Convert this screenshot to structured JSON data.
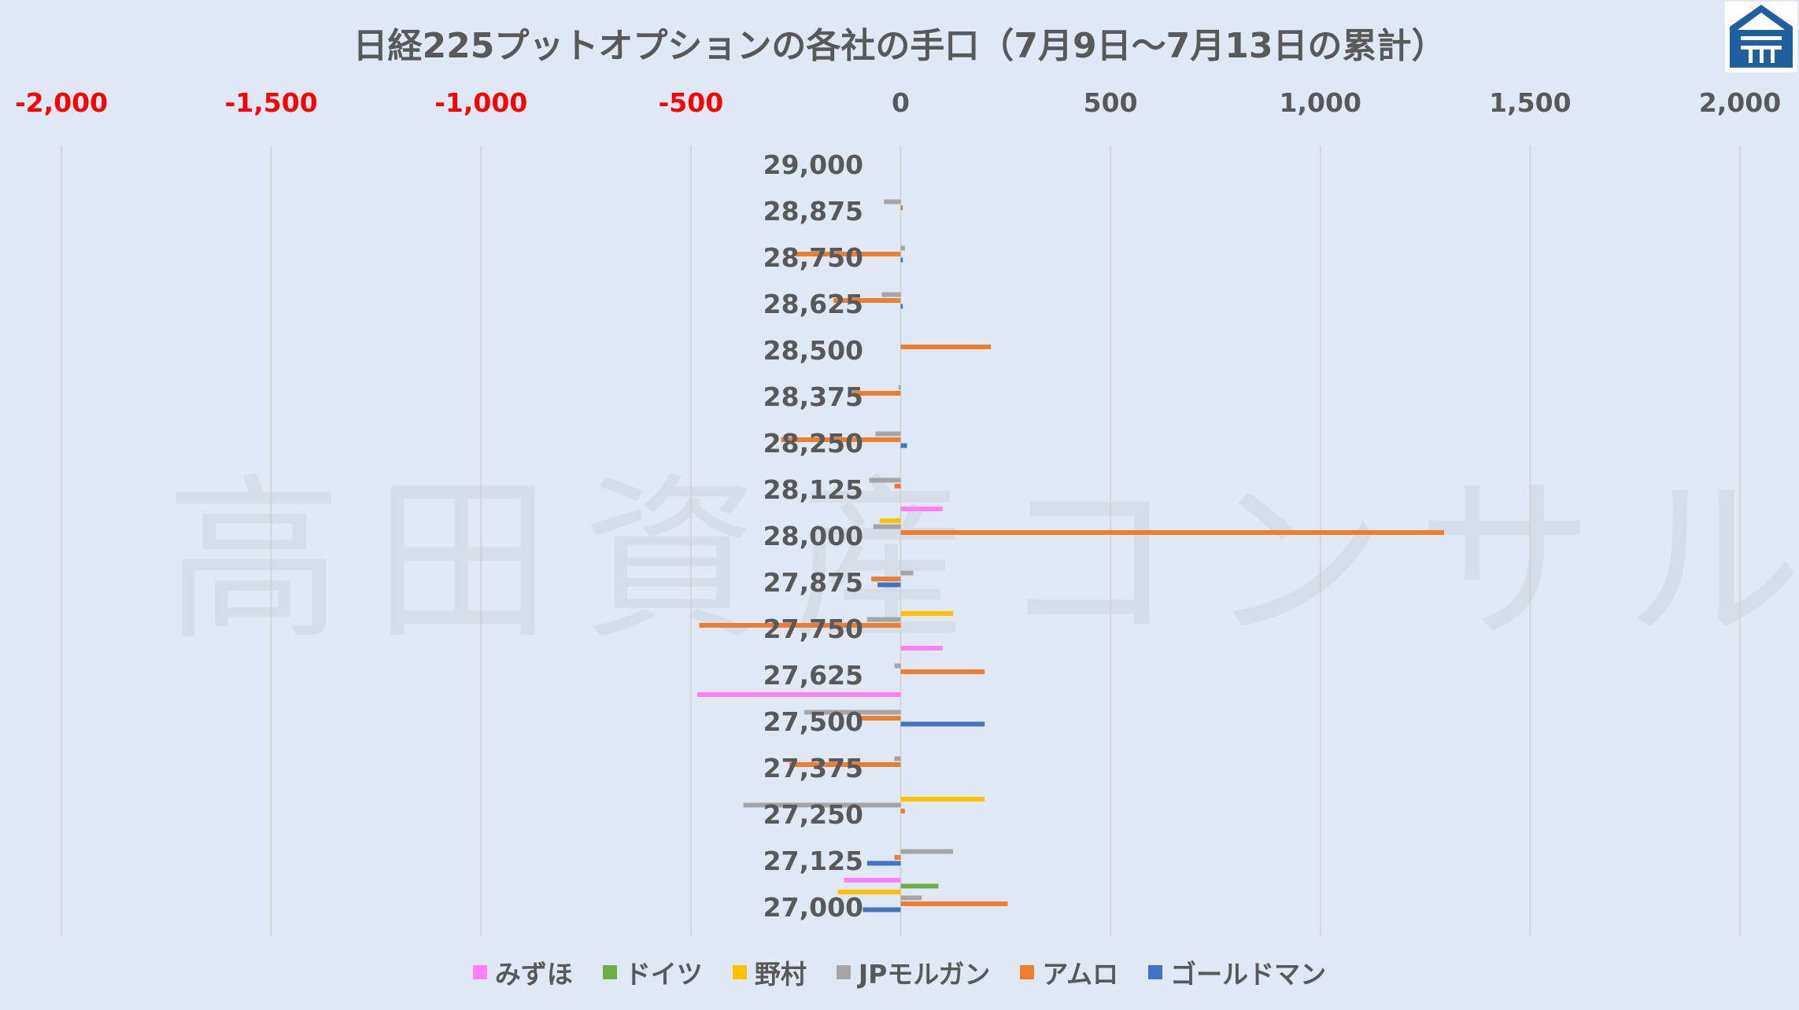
{
  "title": "日経225プットオプションの各社の手口（7月9日～7月13日の累計）",
  "watermark": "高田資産コンサル",
  "chart_data": {
    "type": "bar",
    "orientation": "horizontal",
    "title": "日経225プットオプションの各社の手口（7月9日～7月13日の累計）",
    "xlim": [
      -2000,
      2000
    ],
    "x_ticks": [
      -2000,
      -1500,
      -1000,
      -500,
      0,
      500,
      1000,
      1500,
      2000
    ],
    "x_tick_labels": [
      "-2,000",
      "-1,500",
      "-1,000",
      "-500",
      "0",
      "500",
      "1,000",
      "1,500",
      "2,000"
    ],
    "negative_tick_color": "#ff0000",
    "grid": true,
    "legend_position": "bottom",
    "categories": [
      "29,000",
      "28,875",
      "28,750",
      "28,625",
      "28,500",
      "28,375",
      "28,250",
      "28,125",
      "28,000",
      "27,875",
      "27,750",
      "27,625",
      "27,500",
      "27,375",
      "27,250",
      "27,125",
      "27,000"
    ],
    "series": [
      {
        "name": "みずほ",
        "color": "#ff80ff",
        "values": [
          0,
          0,
          0,
          0,
          0,
          0,
          0,
          0,
          100,
          0,
          0,
          100,
          -485,
          0,
          0,
          0,
          -135
        ]
      },
      {
        "name": "ドイツ",
        "color": "#70ad47",
        "values": [
          0,
          0,
          0,
          0,
          0,
          0,
          0,
          0,
          0,
          0,
          0,
          0,
          0,
          0,
          0,
          0,
          90
        ]
      },
      {
        "name": "野村",
        "color": "#ffc000",
        "values": [
          0,
          0,
          0,
          0,
          0,
          0,
          0,
          0,
          -50,
          0,
          125,
          0,
          0,
          0,
          200,
          0,
          -150
        ]
      },
      {
        "name": "JPモルガン",
        "color": "#a5a5a5",
        "values": [
          0,
          -40,
          10,
          -45,
          0,
          -5,
          -60,
          -75,
          -65,
          30,
          -80,
          -15,
          -230,
          -15,
          -375,
          125,
          50
        ]
      },
      {
        "name": "アムロ",
        "color": "#ed7d31",
        "values": [
          0,
          5,
          -250,
          -160,
          215,
          -115,
          -285,
          -15,
          1295,
          -70,
          -480,
          200,
          -95,
          -265,
          10,
          -15,
          255
        ]
      },
      {
        "name": "ゴールドマン",
        "color": "#4472c4",
        "values": [
          0,
          0,
          5,
          5,
          0,
          0,
          15,
          0,
          0,
          -55,
          0,
          0,
          200,
          0,
          0,
          -80,
          -90
        ]
      }
    ]
  }
}
